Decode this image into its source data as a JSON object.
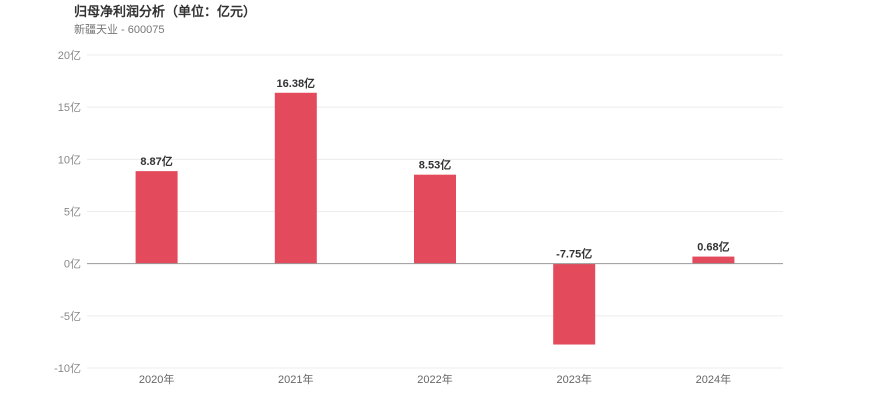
{
  "chart_data": {
    "type": "bar",
    "title": "归母净利润分析（单位：亿元）",
    "subtitle": "新疆天业 - 600075",
    "categories": [
      "2020年",
      "2021年",
      "2022年",
      "2023年",
      "2024年"
    ],
    "values": [
      8.87,
      16.38,
      8.53,
      -7.75,
      0.68
    ],
    "value_labels": [
      "8.87亿",
      "16.38亿",
      "8.53亿",
      "-7.75亿",
      "0.68亿"
    ],
    "y_ticks": [
      20,
      15,
      10,
      5,
      0,
      -5,
      -10
    ],
    "y_tick_labels": [
      "20亿",
      "15亿",
      "10亿",
      "5亿",
      "0亿",
      "-5亿",
      "-10亿"
    ],
    "ylim": [
      -10,
      20
    ],
    "grid": true,
    "bar_color": "#e34b5d"
  }
}
